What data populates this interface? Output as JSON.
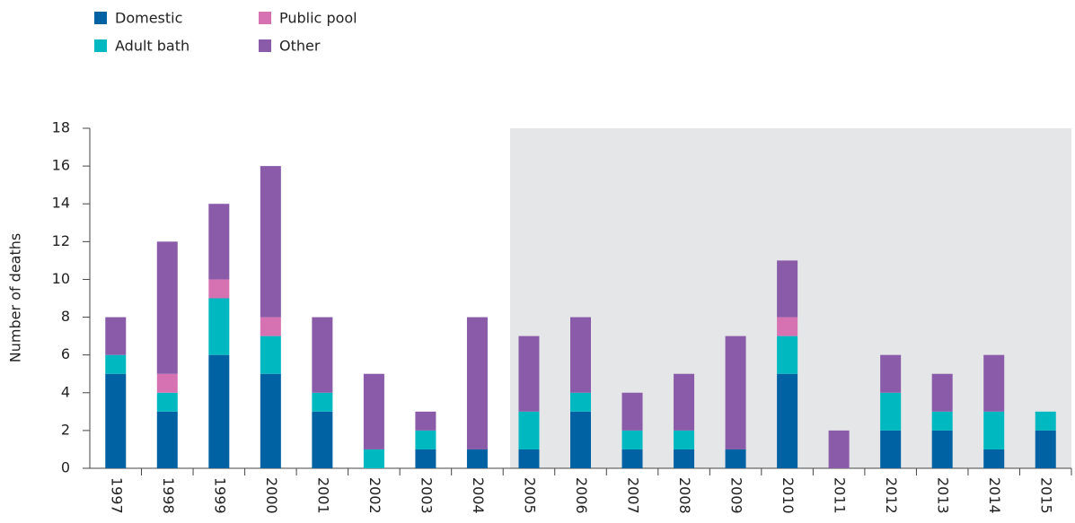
{
  "chart_data": {
    "type": "bar",
    "stacked": true,
    "y_label": "Number of deaths",
    "categories": [
      "1997",
      "1998",
      "1999",
      "2000",
      "2001",
      "2002",
      "2003",
      "2004",
      "2005",
      "2006",
      "2007",
      "2008",
      "2009",
      "2010",
      "2011",
      "2012",
      "2013",
      "2014",
      "2015"
    ],
    "series": [
      {
        "name": "Domestic",
        "color": "#0062a3",
        "values": [
          5,
          3,
          6,
          5,
          3,
          0,
          1,
          1,
          1,
          3,
          1,
          1,
          1,
          5,
          0,
          2,
          2,
          1,
          2
        ]
      },
      {
        "name": "Adult bath",
        "color": "#00b8bf",
        "values": [
          1,
          1,
          3,
          2,
          1,
          1,
          1,
          0,
          2,
          1,
          1,
          1,
          0,
          2,
          0,
          2,
          1,
          2,
          1
        ]
      },
      {
        "name": "Public pool",
        "color": "#d672b2",
        "values": [
          0,
          1,
          1,
          1,
          0,
          0,
          0,
          0,
          0,
          0,
          0,
          0,
          0,
          1,
          0,
          0,
          0,
          0,
          0
        ]
      },
      {
        "name": "Other",
        "color": "#8a5ba8",
        "values": [
          2,
          7,
          4,
          8,
          4,
          4,
          1,
          7,
          4,
          4,
          2,
          3,
          6,
          3,
          2,
          2,
          2,
          3,
          0
        ]
      }
    ],
    "ylim": [
      0,
      18
    ],
    "yticks": [
      0,
      2,
      4,
      6,
      8,
      10,
      12,
      14,
      16,
      18
    ],
    "grid": false
  }
}
